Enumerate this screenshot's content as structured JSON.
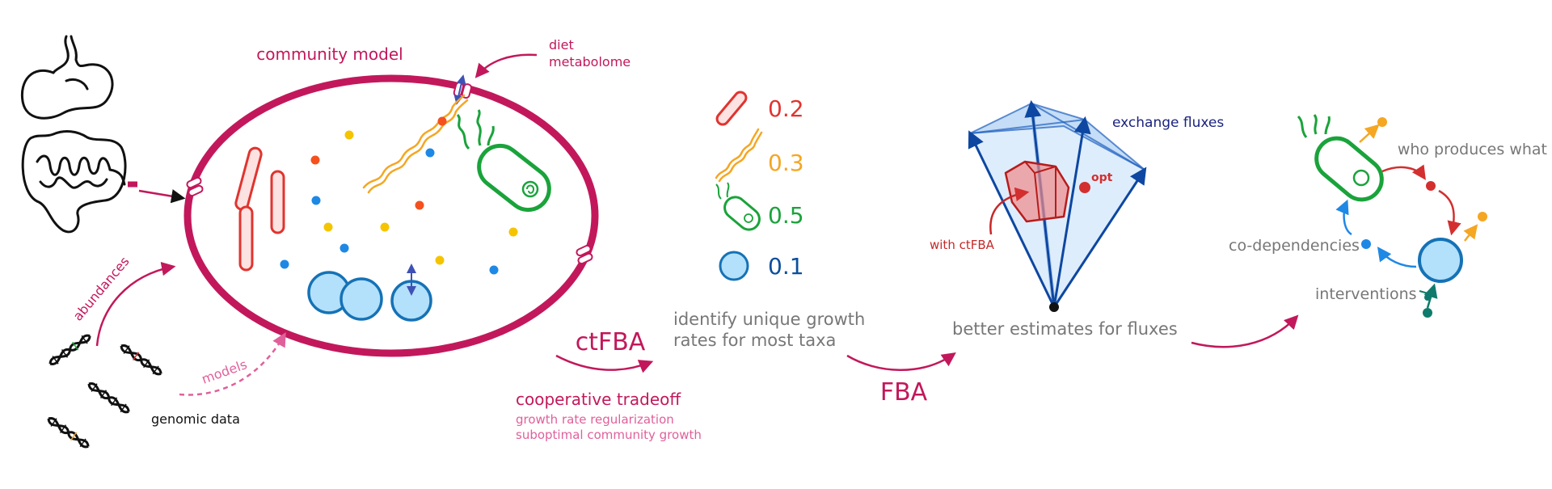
{
  "labels": {
    "community_model": "community model",
    "diet": "diet",
    "metabolome": "metabolome",
    "abundances": "abundances",
    "models": "models",
    "genomic_data": "genomic data",
    "ctfba": "ctFBA",
    "cooperative_tradeoff": "cooperative tradeoff",
    "growth_rate_regularization": "growth rate regularization",
    "suboptimal_community_growth": "suboptimal community growth",
    "identify_line1": "identify unique growth",
    "identify_line2": "rates for most taxa",
    "fba": "FBA",
    "exchange_fluxes": "exchange fluxes",
    "opt": "opt",
    "with_ctfba": "with ctFBA",
    "better_estimates": "better estimates for fluxes",
    "who_produces_what": "who produces what",
    "co_dependencies": "co-dependencies",
    "interventions": "interventions"
  },
  "growth_rates": [
    {
      "taxon": "rod",
      "value": "0.2",
      "color": "#e0342f"
    },
    {
      "taxon": "spirochete",
      "value": "0.3",
      "color": "#f5a623"
    },
    {
      "taxon": "flagellate",
      "value": "0.5",
      "color": "#1aa33b"
    },
    {
      "taxon": "coccus",
      "value": "0.1",
      "color": "#0a4f9c"
    }
  ],
  "colors": {
    "magenta": "#c2185b",
    "magenta_light": "#e0609b",
    "gray_text": "#777777",
    "blue_dark": "#0d47a1",
    "red": "#d32f2f",
    "teal": "#0f7b6c",
    "cyan": "#1e88e5"
  }
}
